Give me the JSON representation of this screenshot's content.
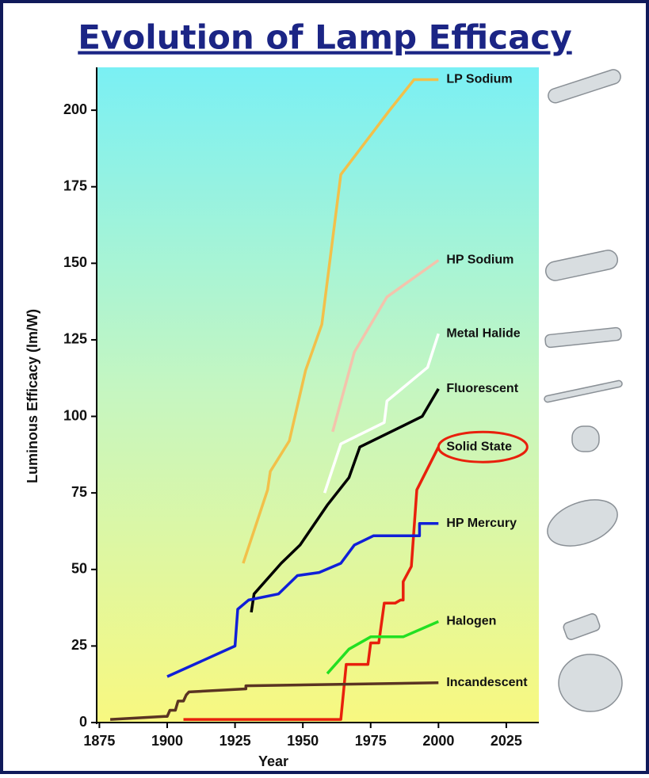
{
  "chart_data": {
    "type": "line",
    "title": "Evolution of Lamp Efficacy",
    "x_label": "Year",
    "y_label": "Luminous Efficacy (lm/W)",
    "xlim": [
      1874,
      2037
    ],
    "ylim": [
      0,
      214
    ],
    "xticks": [
      1875,
      1900,
      1925,
      1950,
      1975,
      2000,
      2025
    ],
    "yticks": [
      0,
      25,
      50,
      75,
      100,
      125,
      150,
      175,
      200
    ],
    "grid": false,
    "highlighted_series": 4,
    "series": [
      {
        "name": "LP Sodium",
        "color": "#f2c04a",
        "x": [
          1928,
          1937,
          1938,
          1945,
          1951,
          1957,
          1964,
          1982,
          1991,
          2000
        ],
        "values": [
          52,
          76,
          82,
          92,
          115,
          130,
          179,
          200,
          210,
          210
        ]
      },
      {
        "name": "HP Sodium",
        "color": "#f3c3ac",
        "x": [
          1961,
          1969,
          1981,
          2000
        ],
        "values": [
          95,
          121,
          139,
          151
        ]
      },
      {
        "name": "Metal Halide",
        "color": "#ffffff",
        "x": [
          1958,
          1964,
          1980,
          1981,
          1996,
          2000
        ],
        "values": [
          75,
          91,
          98,
          105,
          116,
          127
        ]
      },
      {
        "name": "Fluorescent",
        "color": "#000000",
        "x": [
          1931,
          1932,
          1942,
          1949,
          1959,
          1967,
          1971,
          1994,
          2000
        ],
        "values": [
          36,
          42,
          52,
          58,
          71,
          80,
          90,
          100,
          109
        ]
      },
      {
        "name": "Solid State",
        "color": "#e8200c",
        "x": [
          1906,
          1964,
          1966,
          1974,
          1975,
          1978,
          1980,
          1984,
          1986,
          1987,
          1987,
          1990,
          1992,
          2000
        ],
        "values": [
          1,
          1,
          19,
          19,
          26,
          26,
          39,
          39,
          40,
          40,
          46,
          51,
          76,
          90
        ]
      },
      {
        "name": "HP Mercury",
        "color": "#1020d8",
        "x": [
          1900,
          1925,
          1926,
          1930,
          1941,
          1948,
          1956,
          1964,
          1969,
          1976,
          1993,
          1993,
          2000
        ],
        "values": [
          15,
          25,
          37,
          40,
          42,
          48,
          49,
          52,
          58,
          61,
          61,
          65,
          65
        ]
      },
      {
        "name": "Halogen",
        "color": "#22e022",
        "x": [
          1959,
          1967,
          1975,
          1987,
          2000
        ],
        "values": [
          16,
          24,
          28,
          28,
          33
        ]
      },
      {
        "name": "Incandescent",
        "color": "#5a3422",
        "x": [
          1879,
          1899,
          1900,
          1901,
          1903,
          1904,
          1906,
          1907,
          1908,
          1929,
          1929,
          2000
        ],
        "values": [
          1,
          2,
          2,
          4,
          4,
          7,
          7,
          9,
          10,
          11,
          12,
          13
        ]
      }
    ]
  }
}
